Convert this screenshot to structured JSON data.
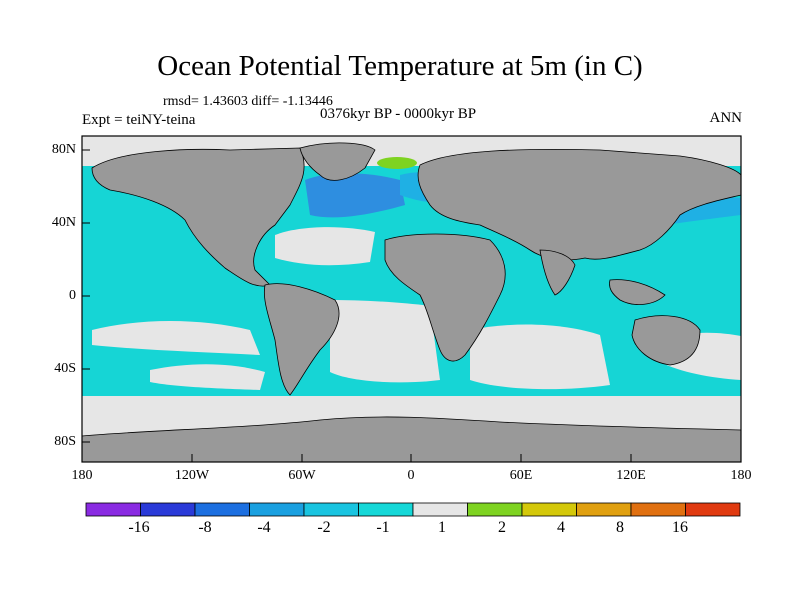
{
  "title": "Ocean Potential Temperature at 5m (in C)",
  "stats": "rmsd= 1.43603 diff= -1.13446",
  "experiment": "Expt = teiNY-teina",
  "period": "0376kyr BP - 0000kyr BP",
  "season": "ANN",
  "lat_labels": [
    "80N",
    "40N",
    "0",
    "40S",
    "80S"
  ],
  "lon_labels": [
    "180",
    "120W",
    "60W",
    "0",
    "60E",
    "120E",
    "180"
  ],
  "colorbar": {
    "colors": [
      "#8a2be2",
      "#2a3ad8",
      "#1c6fe0",
      "#1aa0e0",
      "#19c4e0",
      "#16d8d8",
      "#e6e6e6",
      "#7ed321",
      "#d4c80a",
      "#e0a010",
      "#e07010",
      "#e03a10"
    ],
    "labels": [
      "-16",
      "-8",
      "-4",
      "-2",
      "-1",
      "1",
      "2",
      "4",
      "8",
      "16"
    ]
  },
  "map_colors": {
    "ocean_cooling": "#16d5d5",
    "near_zero": "#e6e6e6",
    "strong_cooling": "#2e8ee0",
    "moderate_cooling": "#1fb0e4",
    "warming": "#7ed321",
    "land": "#999999"
  }
}
